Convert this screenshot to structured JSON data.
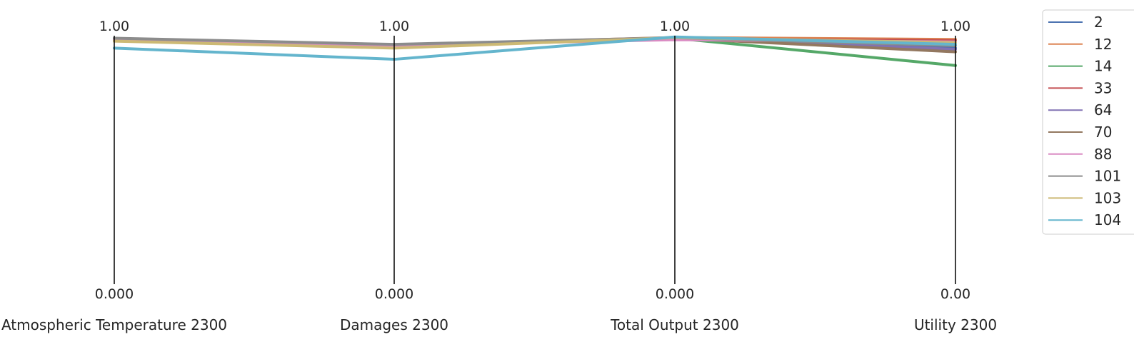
{
  "chart_data": {
    "type": "parallel-coordinates",
    "axes": [
      {
        "label": "Atmospheric Temperature 2300",
        "top_tick": "1.00",
        "bottom_tick": "0.000"
      },
      {
        "label": "Damages 2300",
        "top_tick": "1.00",
        "bottom_tick": "0.000"
      },
      {
        "label": "Total Output 2300",
        "top_tick": "1.00",
        "bottom_tick": "0.000"
      },
      {
        "label": "Utility 2300",
        "top_tick": "1.00",
        "bottom_tick": "0.00"
      }
    ],
    "ylim": [
      0,
      1
    ],
    "grid": false,
    "legend_position": "right",
    "series": [
      {
        "name": "2",
        "color": "#4c72b0",
        "values": [
          0.985,
          0.96,
          0.99,
          0.95
        ]
      },
      {
        "name": "12",
        "color": "#dd8452",
        "values": [
          0.987,
          0.962,
          0.993,
          0.985
        ]
      },
      {
        "name": "14",
        "color": "#55a868",
        "values": [
          0.983,
          0.958,
          0.99,
          0.88
        ]
      },
      {
        "name": "33",
        "color": "#c44e52",
        "values": [
          0.986,
          0.961,
          0.987,
          0.98
        ]
      },
      {
        "name": "64",
        "color": "#8172b3",
        "values": [
          0.984,
          0.959,
          0.991,
          0.945
        ]
      },
      {
        "name": "70",
        "color": "#937860",
        "values": [
          0.985,
          0.96,
          0.99,
          0.935
        ]
      },
      {
        "name": "88",
        "color": "#da8bc3",
        "values": [
          0.986,
          0.961,
          0.984,
          0.975
        ]
      },
      {
        "name": "101",
        "color": "#8c8c8c",
        "values": [
          0.99,
          0.965,
          0.992,
          0.96
        ]
      },
      {
        "name": "103",
        "color": "#ccb974",
        "values": [
          0.978,
          0.95,
          0.992,
          0.972
        ]
      },
      {
        "name": "104",
        "color": "#64b5cd",
        "values": [
          0.95,
          0.905,
          0.995,
          0.965
        ]
      }
    ]
  }
}
